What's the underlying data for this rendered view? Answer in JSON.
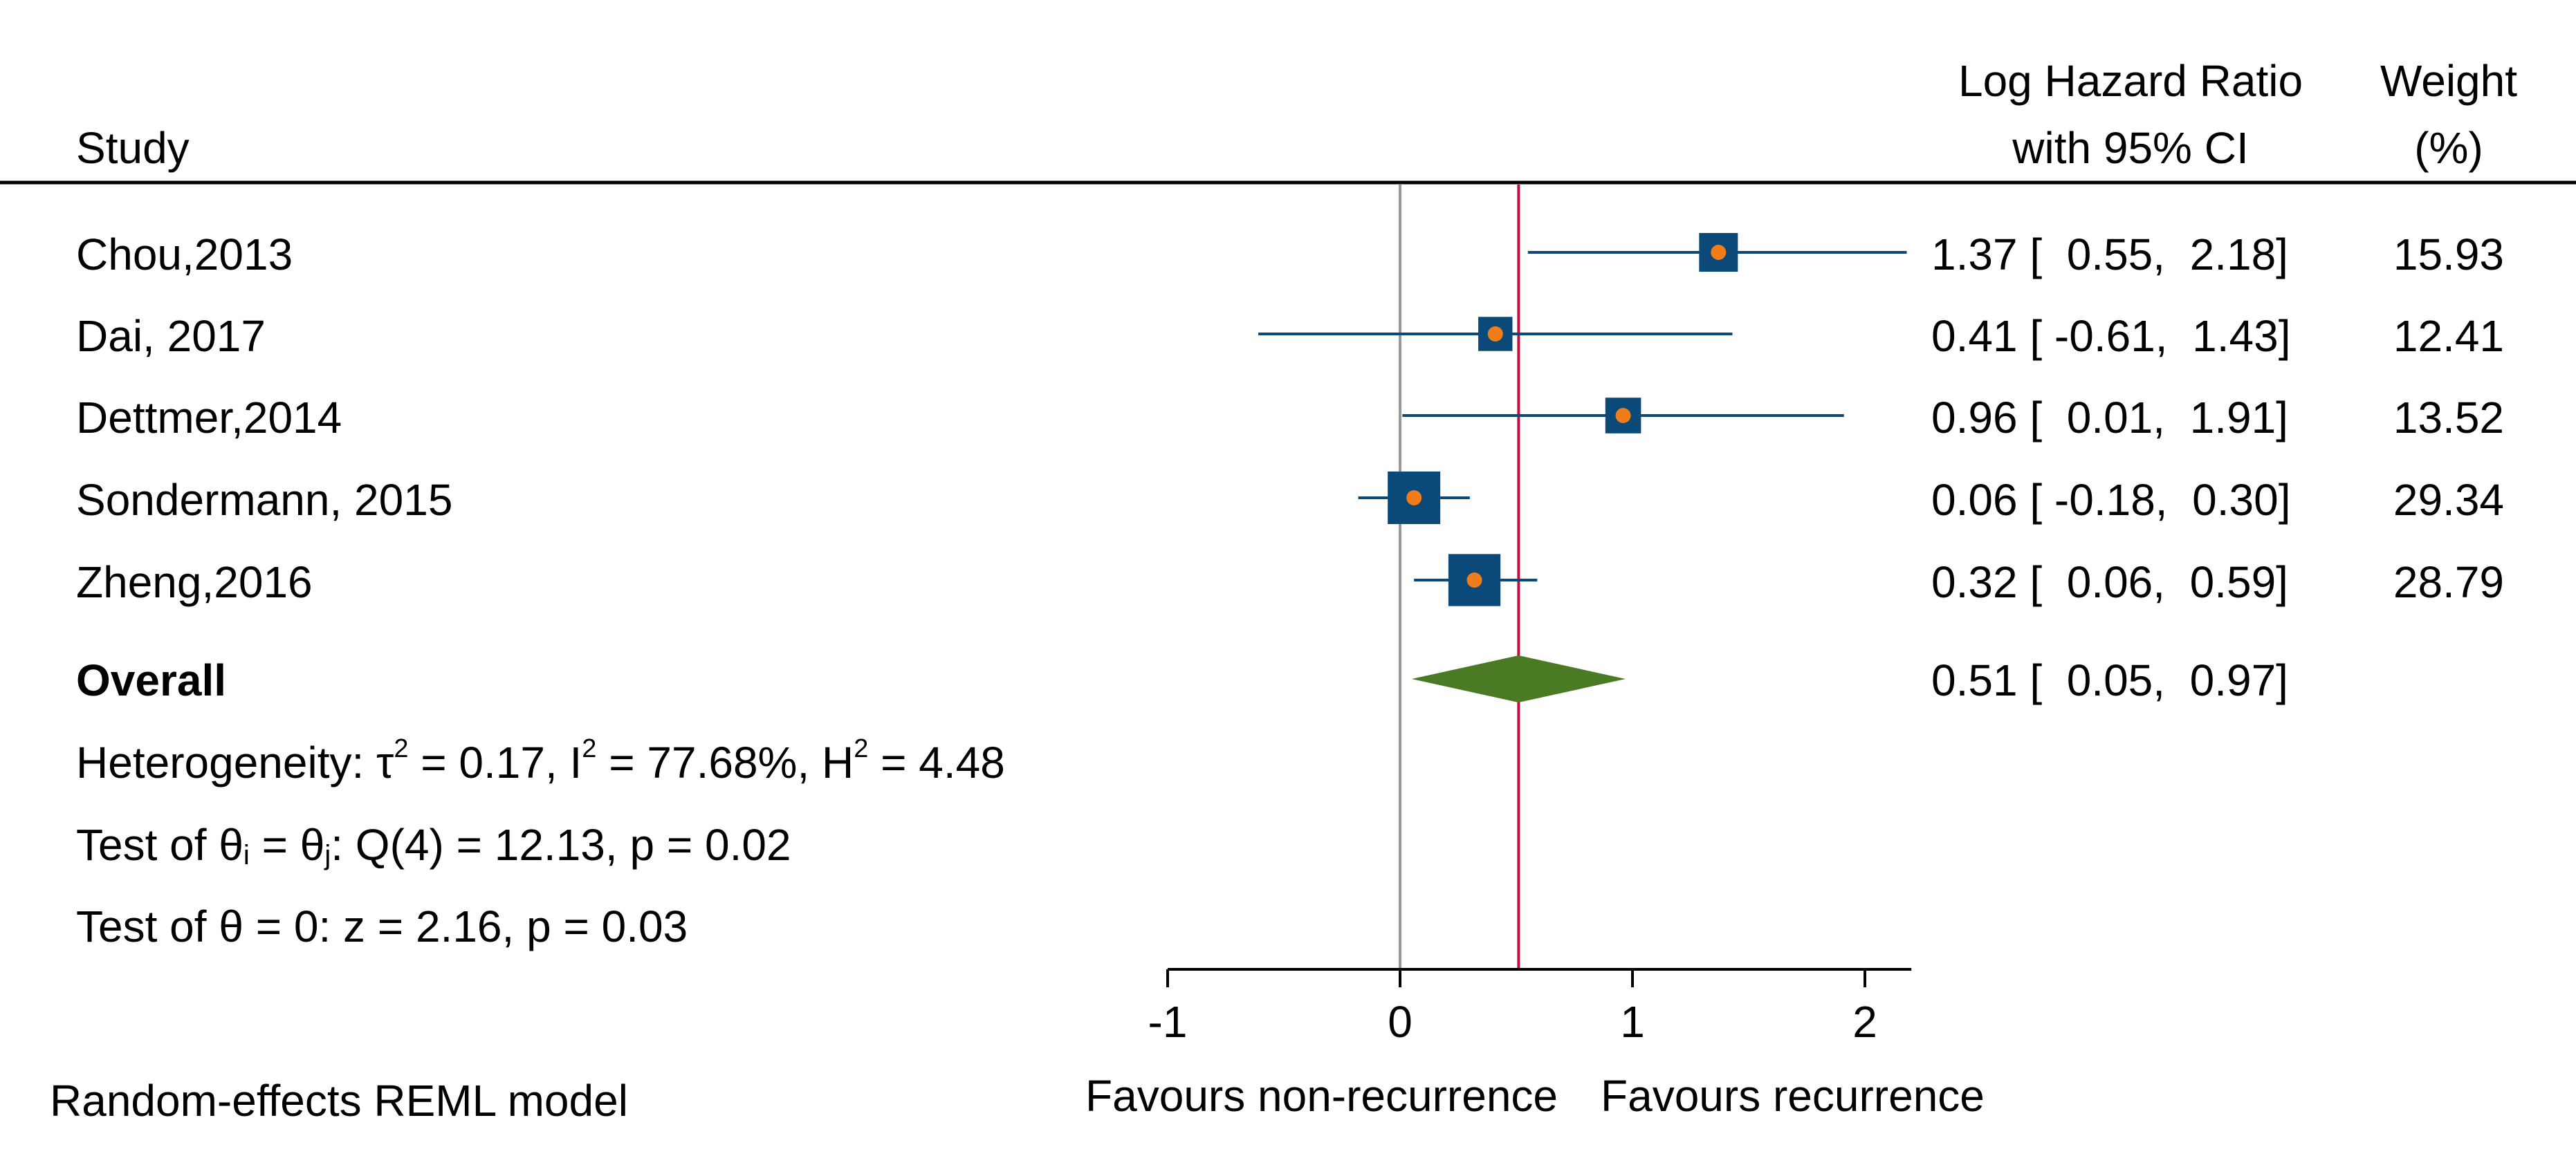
{
  "chart_data": {
    "type": "forest",
    "title": "",
    "columns": {
      "study_header": "Study",
      "effect_header": [
        "Log Hazard Ratio",
        "with 95% CI"
      ],
      "weight_header": [
        "Weight",
        "(%)"
      ]
    },
    "studies": [
      {
        "name": "Chou,2013",
        "estimate": 1.37,
        "lower": 0.55,
        "upper": 2.18,
        "effect_text": "1.37 [  0.55,  2.18]",
        "weight": 15.93,
        "weight_text": "15.93"
      },
      {
        "name": "Dai, 2017",
        "estimate": 0.41,
        "lower": -0.61,
        "upper": 1.43,
        "effect_text": "0.41 [ -0.61,  1.43]",
        "weight": 12.41,
        "weight_text": "12.41"
      },
      {
        "name": "Dettmer,2014",
        "estimate": 0.96,
        "lower": 0.01,
        "upper": 1.91,
        "effect_text": "0.96 [  0.01,  1.91]",
        "weight": 13.52,
        "weight_text": "13.52"
      },
      {
        "name": "Sondermann, 2015",
        "estimate": 0.06,
        "lower": -0.18,
        "upper": 0.3,
        "effect_text": "0.06 [ -0.18,  0.30]",
        "weight": 29.34,
        "weight_text": "29.34"
      },
      {
        "name": "Zheng,2016",
        "estimate": 0.32,
        "lower": 0.06,
        "upper": 0.59,
        "effect_text": "0.32 [  0.06,  0.59]",
        "weight": 28.79,
        "weight_text": "28.79"
      }
    ],
    "overall": {
      "name": "Overall",
      "estimate": 0.51,
      "lower": 0.05,
      "upper": 0.97,
      "effect_text": "0.51 [  0.05,  0.97]"
    },
    "heterogeneity": {
      "label": "Heterogeneity: ",
      "tau_symbol": "τ",
      "tau2_value": " = 0.17, ",
      "i_symbol": "I",
      "i2_value": " = 77.68%, ",
      "h_symbol": "H",
      "h2_value": " = 4.48",
      "sup": "2"
    },
    "test_q": {
      "prefix": "Test of θ",
      "sub_i": "i",
      "mid": " = θ",
      "sub_j": "j",
      "suffix": ": Q(4) = 12.13, p = 0.02"
    },
    "test_z": "Test of θ = 0: z = 2.16, p = 0.03",
    "model_note": "Random-effects REML model",
    "x_axis": {
      "ticks": [
        -1,
        0,
        1,
        2
      ],
      "tick_labels": [
        "-1",
        "0",
        "1",
        "2"
      ],
      "range": [
        -1,
        2.2
      ],
      "left_label": "Favours non-recurrence",
      "right_label": "Favours recurrence"
    },
    "reference_line": 0,
    "colors": {
      "marker": "#0b4a78",
      "point": "#f07c1a",
      "diamond": "#4a7a23",
      "overall_line": "#cc0a3c",
      "null_line": "#9a9a9a"
    }
  }
}
